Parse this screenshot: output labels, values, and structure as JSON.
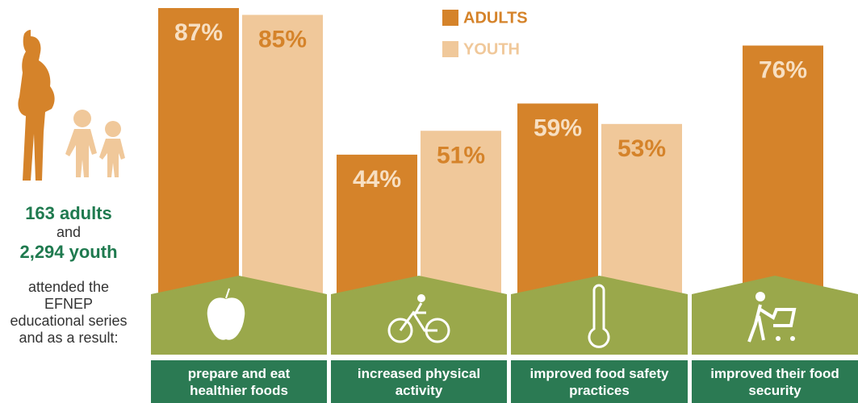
{
  "side_text": {
    "adults": "163 adults",
    "and": "and",
    "youth": "2,294 youth",
    "body": "attended the EFNEP educational series and as a result:"
  },
  "chart_data": {
    "type": "bar",
    "categories": [
      "prepare and eat healthier foods",
      "increased physical activity",
      "improved food safety practices",
      "improved their food security"
    ],
    "series": [
      {
        "name": "ADULTS",
        "color": "#d5832a",
        "values": [
          87,
          44,
          59,
          76
        ],
        "value_labels": [
          "87%",
          "44%",
          "59%",
          "76%"
        ]
      },
      {
        "name": "YOUTH",
        "color": "#f0c89a",
        "values": [
          85,
          51,
          53,
          null
        ],
        "value_labels": [
          "85%",
          "51%",
          "53%",
          null
        ]
      }
    ]
  }
}
